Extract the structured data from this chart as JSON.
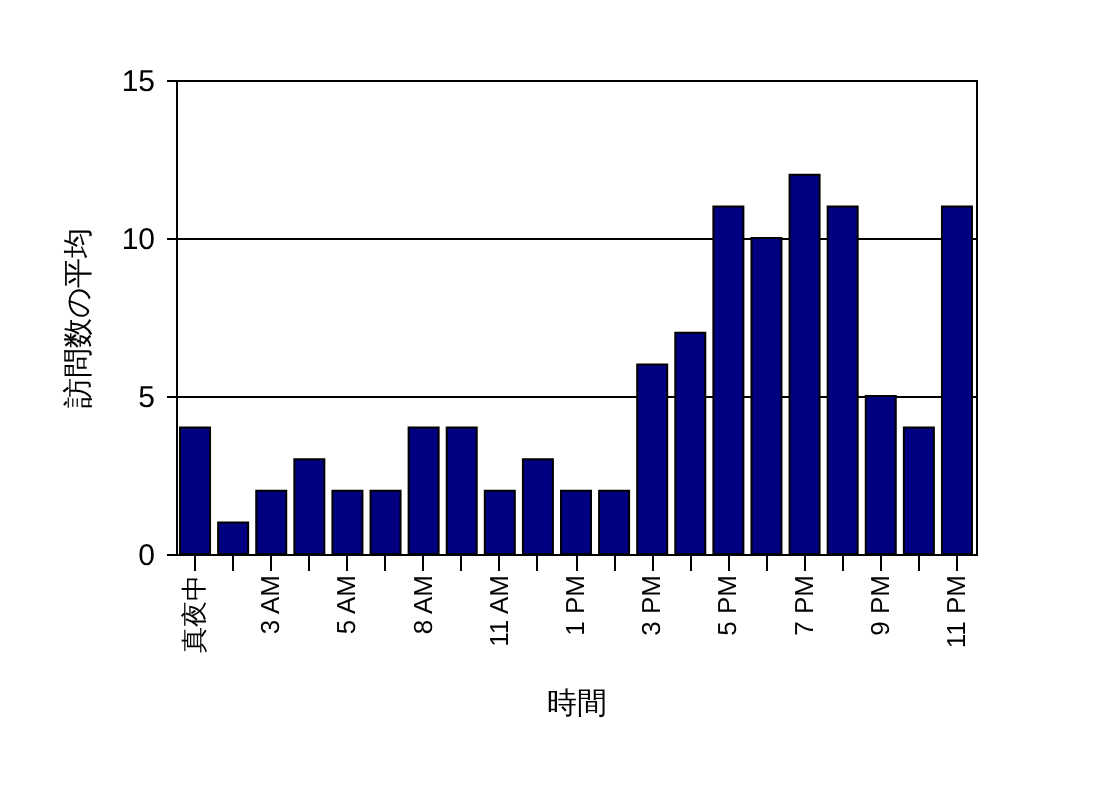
{
  "chart_data": {
    "type": "bar",
    "xlabel": "時間",
    "ylabel": "訪問数の平均",
    "categories": [
      "真夜中",
      null,
      "3 AM",
      null,
      "5 AM",
      null,
      "8 AM",
      null,
      "11 AM",
      null,
      "1 PM",
      null,
      "3 PM",
      null,
      "5 PM",
      null,
      "7 PM",
      null,
      "9 PM",
      null,
      "11 PM"
    ],
    "values": [
      4,
      1,
      2,
      3,
      2,
      2,
      4,
      4,
      2,
      3,
      2,
      2,
      6,
      7,
      11,
      10,
      12,
      11,
      5,
      4,
      11
    ],
    "color": "#000080",
    "ylim": [
      0,
      15
    ],
    "yticks": [
      0,
      5,
      10,
      15
    ],
    "grid": "y"
  }
}
